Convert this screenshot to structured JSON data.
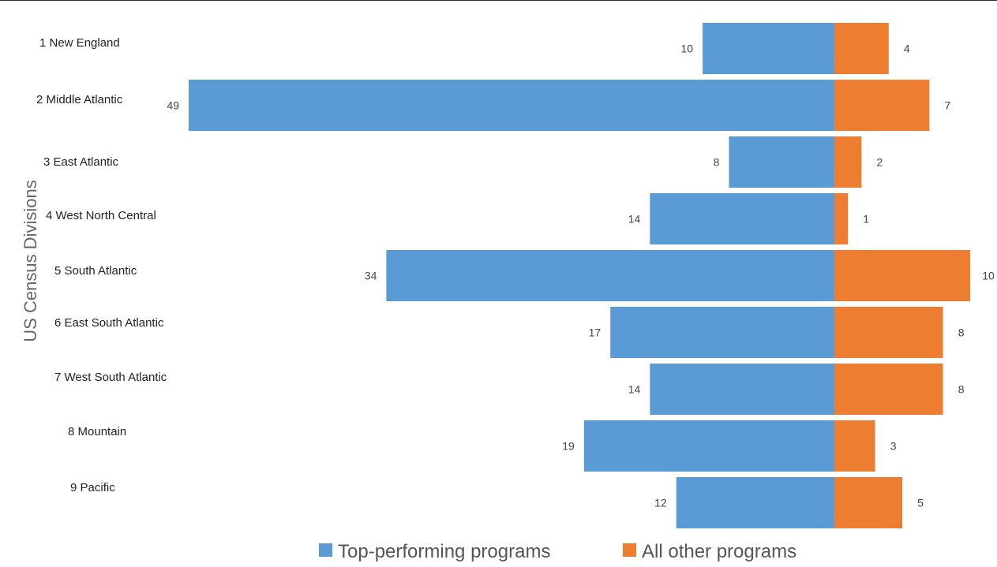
{
  "chart_data": {
    "type": "bar",
    "orientation": "horizontal",
    "ylabel": "US Census Divisions",
    "categories": [
      "1 New England",
      "2 Middle Atlantic",
      "3 East Atlantic",
      "4 West North Central",
      "5 South Atlantic",
      "6 East South Atlantic",
      "7 West South Atlantic",
      "8 Mountain",
      "9 Pacific"
    ],
    "series": [
      {
        "name": "Top-performing programs",
        "color": "#5b9bd5",
        "values": [
          10,
          49,
          8,
          14,
          34,
          17,
          14,
          19,
          12
        ]
      },
      {
        "name": "All other programs",
        "color": "#ed7d31",
        "values": [
          4,
          7,
          2,
          1,
          10,
          8,
          8,
          3,
          5
        ]
      }
    ],
    "legend_position": "bottom",
    "grid": false
  }
}
